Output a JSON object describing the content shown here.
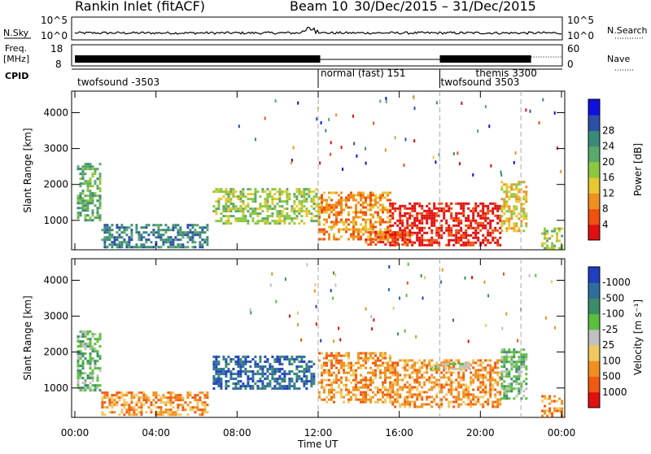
{
  "header": {
    "station": "Rankin Inlet (fitACF)",
    "beam": "Beam 10",
    "date_range": "30/Dec/2015 – 31/Dec/2015"
  },
  "params_panel": {
    "nsky_label": "N.Sky",
    "nsky_ticks": [
      "10^5",
      "10^0"
    ],
    "nsearch_label": "N.Search",
    "nsearch_ticks": [
      "10^5",
      "10^0"
    ],
    "freq_label_1": "Freq.",
    "freq_label_2": "[MHz]",
    "freq_ticks": [
      "18",
      "8"
    ],
    "nave_label": "Nave",
    "nave_ticks": [
      "60",
      "0"
    ],
    "cpid_label": "CPID",
    "cpid_segments": [
      {
        "label": "twofsound -3503",
        "start_hr": 0
      },
      {
        "label": "normal (fast) 151",
        "start_hr": 12
      },
      {
        "label": "themis 3300",
        "start_hr": 18
      },
      {
        "label": "twofsound 3503",
        "start_hr": 18
      }
    ]
  },
  "chart_data": [
    {
      "type": "heatmap",
      "quantity": "Power",
      "ylabel": "Slant Range [km]",
      "xlabel": "",
      "ylim": [
        180,
        4600
      ],
      "yticks": [
        1000,
        2000,
        3000,
        4000
      ],
      "xticks": [
        "00:00",
        "04:00",
        "08:00",
        "12:00",
        "16:00",
        "20:00",
        "00:00"
      ],
      "xlim_hours": [
        0,
        24
      ],
      "colorbar_label": "Power [dB]",
      "colorbar_ticks": [
        "4",
        "8",
        "12",
        "16",
        "20",
        "24",
        "28"
      ],
      "colorbar_colors": [
        "#1010e0",
        "#2c4fa8",
        "#3a8a7a",
        "#5ca86a",
        "#8cc840",
        "#e8c830",
        "#f09020",
        "#f05010",
        "#e01010"
      ],
      "vertical_markers_hours": [
        12,
        18,
        22
      ],
      "regions": [
        {
          "t0": 0.1,
          "t1": 1.3,
          "r0": 1000,
          "r1": 2600,
          "level": 3
        },
        {
          "t0": 1.3,
          "t1": 6.5,
          "r0": 250,
          "r1": 900,
          "level": 2
        },
        {
          "t0": 6.8,
          "t1": 12,
          "r0": 900,
          "r1": 1900,
          "level": 4
        },
        {
          "t0": 12,
          "t1": 15.5,
          "r0": 500,
          "r1": 1800,
          "level": 6
        },
        {
          "t0": 15.5,
          "t1": 21,
          "r0": 300,
          "r1": 1500,
          "level": 8
        },
        {
          "t0": 21,
          "t1": 22.3,
          "r0": 700,
          "r1": 2100,
          "level": 5
        },
        {
          "t0": 14.3,
          "t1": 16.7,
          "r0": 350,
          "r1": 700,
          "level": 7
        },
        {
          "t0": 23,
          "t1": 24,
          "r0": 250,
          "r1": 800,
          "level": 4
        }
      ]
    },
    {
      "type": "heatmap",
      "quantity": "Velocity",
      "ylabel": "Slant Range [km]",
      "xlabel": "Time UT",
      "ylim": [
        180,
        4600
      ],
      "yticks": [
        1000,
        2000,
        3000,
        4000
      ],
      "xticks": [
        "00:00",
        "04:00",
        "08:00",
        "12:00",
        "16:00",
        "20:00",
        "00:00"
      ],
      "xlim_hours": [
        0,
        24
      ],
      "colorbar_label": "Velocity [m s⁻¹]",
      "colorbar_ticks": [
        "1000",
        "500",
        "100",
        "25",
        "-25",
        "-100",
        "-500",
        "-1000"
      ],
      "colorbar_colors": [
        "#1f3fbf",
        "#2e6e9c",
        "#3c8c6a",
        "#5abf3c",
        "#c0c0c0",
        "#f0c860",
        "#f09020",
        "#f05a10",
        "#e01010"
      ],
      "vertical_markers_hours": [
        12,
        18,
        22
      ],
      "regions": [
        {
          "t0": 0.1,
          "t1": 1.3,
          "r0": 900,
          "r1": 2600,
          "level": 3
        },
        {
          "t0": 1.3,
          "t1": 6.5,
          "r0": 250,
          "r1": 900,
          "level": 6
        },
        {
          "t0": 6.8,
          "t1": 11.8,
          "r0": 1000,
          "r1": 1900,
          "level": 1
        },
        {
          "t0": 12,
          "t1": 15.5,
          "r0": 600,
          "r1": 2000,
          "level": 6
        },
        {
          "t0": 15.5,
          "t1": 21,
          "r0": 500,
          "r1": 1800,
          "level": 6
        },
        {
          "t0": 17.5,
          "t1": 19.5,
          "r0": 1500,
          "r1": 1700,
          "level": 4
        },
        {
          "t0": 21,
          "t1": 22.3,
          "r0": 700,
          "r1": 2100,
          "level": 3
        },
        {
          "t0": 23,
          "t1": 24,
          "r0": 250,
          "r1": 800,
          "level": 6
        }
      ]
    }
  ]
}
